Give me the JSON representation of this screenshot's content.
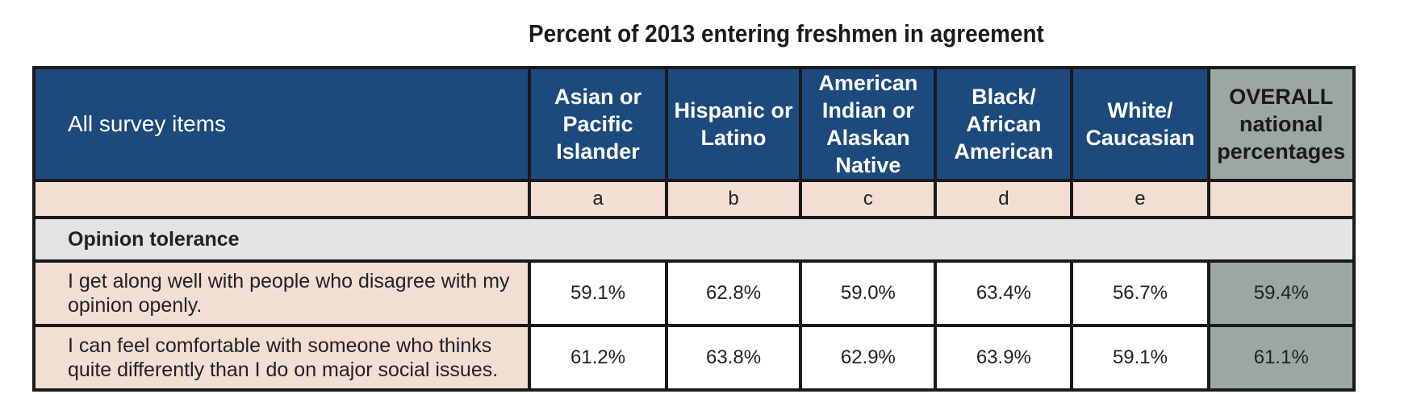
{
  "chart_data": {
    "type": "table",
    "title": "Percent of 2013 entering freshmen in agreement",
    "columns": [
      {
        "label": "All survey items",
        "letter": ""
      },
      {
        "label": "Asian or Pacific Islander",
        "letter": "a"
      },
      {
        "label": "Hispanic or Latino",
        "letter": "b"
      },
      {
        "label": "American Indian or Alaskan Native",
        "letter": "c"
      },
      {
        "label": "Black/ African American",
        "letter": "d"
      },
      {
        "label": "White/ Caucasian",
        "letter": "e"
      },
      {
        "label": "OVERALL national percentages",
        "letter": ""
      }
    ],
    "sections": [
      {
        "name": "Opinion tolerance",
        "rows": [
          {
            "item": "I get along well with people who disagree with my opinion openly.",
            "values": [
              "59.1%",
              "62.8%",
              "59.0%",
              "63.4%",
              "56.7%",
              "59.4%"
            ]
          },
          {
            "item": "I can feel comfortable with someone who thinks quite differently than I do on major social issues.",
            "values": [
              "61.2%",
              "63.8%",
              "62.9%",
              "63.9%",
              "59.1%",
              "61.1%"
            ]
          }
        ]
      }
    ]
  }
}
